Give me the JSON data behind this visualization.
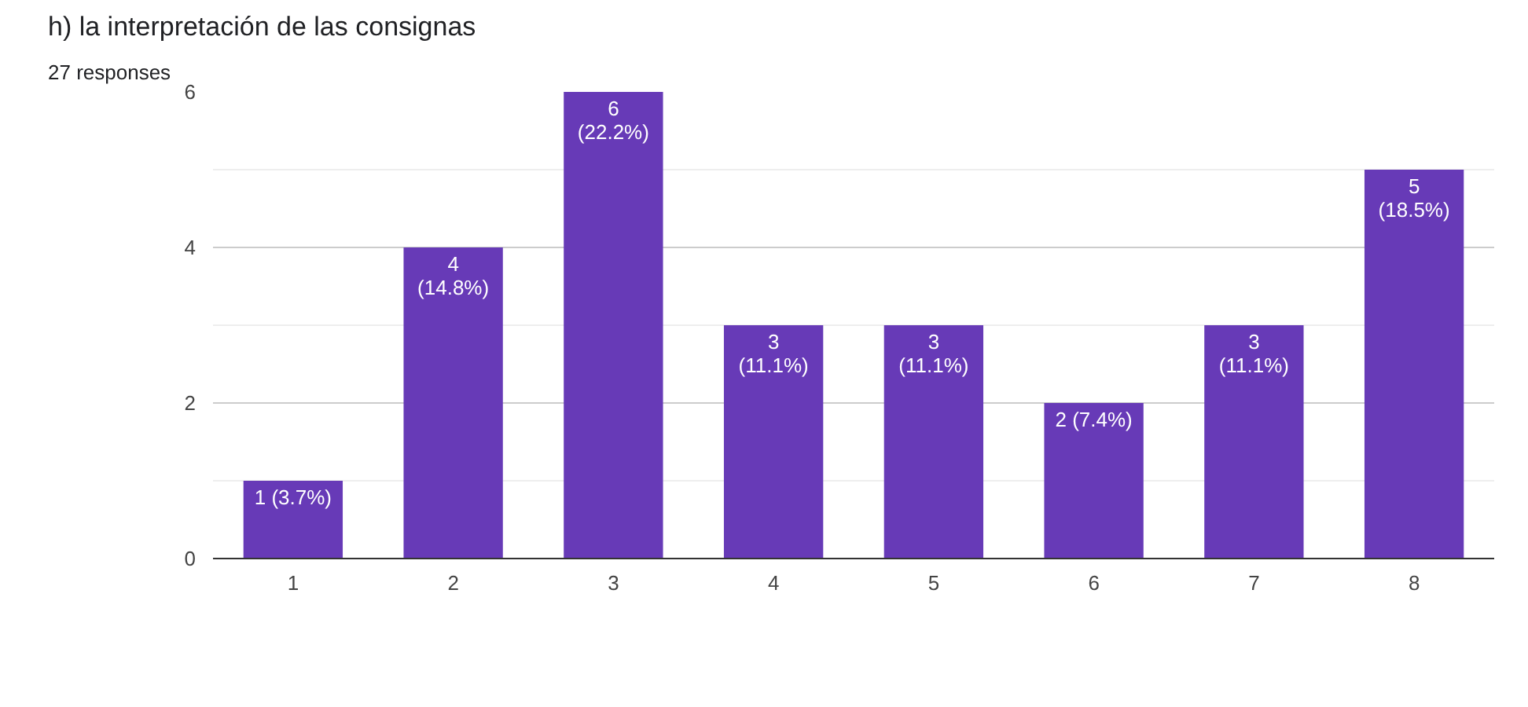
{
  "chart_data": {
    "type": "bar",
    "title": "h) la interpretación de las consignas",
    "subtitle": "27 responses",
    "categories": [
      "1",
      "2",
      "3",
      "4",
      "5",
      "6",
      "7",
      "8"
    ],
    "values": [
      1,
      4,
      6,
      3,
      3,
      2,
      3,
      5
    ],
    "color": "#673ab7",
    "value_labels": [
      "1 (3.7%)",
      "4\n(14.8%)",
      "6\n(22.2%)",
      "3\n(11.1%)",
      "3\n(11.1%)",
      "2 (7.4%)",
      "3\n(11.1%)",
      "5\n(18.5%)"
    ],
    "ylim": [
      0,
      6
    ],
    "yticks": [
      0,
      {
        "value": 1,
        "label": null
      },
      2,
      {
        "value": 3,
        "label": null
      },
      4,
      {
        "value": 5,
        "label": null
      },
      6
    ],
    "grid": "y"
  }
}
